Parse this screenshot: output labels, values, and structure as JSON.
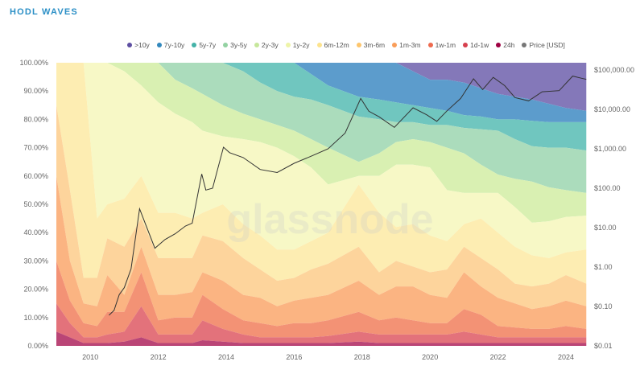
{
  "header": {
    "title": "HODL WAVES"
  },
  "watermark": "glassnode",
  "chart_data": {
    "type": "area",
    "stacked": true,
    "title": "HODL WAVES",
    "x_unit": "year",
    "x": [
      2009.0,
      2009.4,
      2009.8,
      2010.2,
      2010.5,
      2011.0,
      2011.5,
      2012.0,
      2012.5,
      2013.0,
      2013.3,
      2013.9,
      2014.5,
      2015.0,
      2015.5,
      2016.0,
      2016.5,
      2017.0,
      2017.9,
      2018.5,
      2019.0,
      2019.5,
      2020.0,
      2020.5,
      2021.0,
      2021.5,
      2022.0,
      2022.5,
      2023.0,
      2023.5,
      2024.0,
      2024.6
    ],
    "xlim": [
      2009.0,
      2024.64
    ],
    "x_ticks": [
      "2010",
      "2012",
      "2014",
      "2016",
      "2018",
      "2020",
      "2022",
      "2024"
    ],
    "y_ticks": [
      "0.00%",
      "10.00%",
      "20.00%",
      "30.00%",
      "40.00%",
      "50.00%",
      "60.00%",
      "70.00%",
      "80.00%",
      "90.00%",
      "100.00%"
    ],
    "ylim": [
      0,
      100
    ],
    "y2_scale": "log",
    "y2_ticks": [
      "$0.01",
      "$0.10",
      "$1.00",
      "$10.00",
      "$100.00",
      "$1,000.00",
      "$10,000.00",
      "$100,000.00"
    ],
    "y2lim": [
      0.01,
      153000
    ],
    "legend_position": "top",
    "grid": false,
    "band_order_bottom_to_top": [
      "24h",
      "1d-1w",
      "1w-1m",
      "1m-3m",
      "3m-6m",
      "6m-12m",
      "1y-2y",
      "2y-3y",
      "3y-5y",
      "5y-7y",
      "7y-10y",
      ">10y"
    ],
    "shares_percent": [
      [
        5,
        10,
        15,
        30,
        25,
        15,
        0,
        0,
        0,
        0,
        0,
        0
      ],
      [
        3,
        5,
        8,
        14,
        25,
        45,
        0,
        0,
        0,
        0,
        0,
        0
      ],
      [
        1,
        2,
        5,
        7,
        9,
        76,
        0,
        0,
        0,
        0,
        0,
        0
      ],
      [
        1,
        2,
        4,
        7,
        10,
        21,
        55,
        0,
        0,
        0,
        0,
        0
      ],
      [
        1,
        3,
        8,
        13,
        13,
        12,
        50,
        0,
        0,
        0,
        0,
        0
      ],
      [
        1.5,
        3.5,
        7,
        6,
        17,
        17,
        45,
        3,
        0,
        0,
        0,
        0
      ],
      [
        3,
        11,
        12,
        9,
        10,
        15,
        32,
        8,
        0,
        0,
        0,
        0
      ],
      [
        1,
        3,
        5,
        9,
        13,
        16,
        39,
        14,
        0,
        0,
        0,
        0
      ],
      [
        1,
        3,
        6,
        8,
        13,
        16,
        35,
        12,
        6,
        0,
        0,
        0
      ],
      [
        1,
        3,
        6,
        9,
        12,
        14,
        34,
        12,
        9,
        0,
        0,
        0
      ],
      [
        2,
        7,
        9,
        8,
        13,
        8,
        29,
        13,
        11,
        0,
        0,
        0
      ],
      [
        1.5,
        4.5,
        7,
        10,
        14,
        13,
        24,
        11,
        15,
        0,
        0,
        0
      ],
      [
        1,
        3,
        5,
        9,
        13,
        12,
        30,
        9,
        15,
        3,
        0,
        0
      ],
      [
        1,
        2,
        5,
        9,
        10,
        12,
        33,
        8,
        13,
        7,
        0,
        0
      ],
      [
        1,
        2,
        4,
        7,
        9,
        11,
        36,
        8,
        12,
        10,
        0,
        0
      ],
      [
        1,
        2,
        5,
        8,
        8,
        10,
        33,
        9,
        12,
        12,
        0,
        0
      ],
      [
        1,
        2,
        5,
        9,
        10,
        10,
        26,
        10,
        14,
        9,
        4,
        0
      ],
      [
        1,
        2.5,
        5.5,
        9,
        11,
        11,
        17,
        13,
        15,
        7,
        8,
        0
      ],
      [
        1.5,
        3.5,
        7,
        11,
        12,
        22,
        3,
        5,
        16,
        7,
        12,
        0
      ],
      [
        1,
        3,
        5,
        9,
        8,
        21,
        13,
        8,
        12,
        7,
        13,
        0
      ],
      [
        1,
        3,
        6,
        11,
        9,
        12,
        22,
        8,
        7,
        7,
        14,
        0
      ],
      [
        1,
        3,
        5,
        12,
        7,
        15,
        21,
        9,
        6,
        6,
        12,
        3
      ],
      [
        1,
        3,
        4,
        10,
        8,
        13,
        24,
        9,
        6,
        6,
        10,
        6
      ],
      [
        1,
        3,
        4,
        9,
        10,
        10,
        18,
        15,
        8,
        5,
        11,
        6
      ],
      [
        1,
        4,
        8,
        13,
        9,
        8,
        11,
        14,
        9,
        4.5,
        11.5,
        7
      ],
      [
        1,
        3,
        7,
        10,
        10,
        14,
        9,
        10,
        12.5,
        4.5,
        10,
        9
      ],
      [
        1,
        2,
        4,
        10,
        10,
        13,
        14,
        6.5,
        15.5,
        4,
        9,
        11
      ],
      [
        1,
        2,
        3.5,
        8.5,
        7,
        13,
        14,
        10,
        14,
        7,
        8,
        12
      ],
      [
        1,
        2,
        3,
        7,
        8,
        11,
        11.5,
        14.5,
        12.5,
        9,
        7.5,
        13
      ],
      [
        1,
        2,
        3,
        8,
        8,
        9,
        13,
        12,
        14,
        9,
        6.5,
        14.5
      ],
      [
        1,
        2,
        4,
        9,
        9,
        8,
        12.5,
        9.5,
        15,
        9,
        5,
        16
      ],
      [
        1,
        2,
        3,
        8,
        8,
        12,
        12,
        8,
        15,
        10,
        4,
        17
      ]
    ],
    "price": {
      "name": "Price [USD]",
      "x": [
        2010.55,
        2010.7,
        2010.85,
        2011.0,
        2011.2,
        2011.45,
        2011.6,
        2011.9,
        2012.2,
        2012.5,
        2012.8,
        2013.0,
        2013.28,
        2013.4,
        2013.6,
        2013.92,
        2014.1,
        2014.5,
        2015.0,
        2015.5,
        2016.0,
        2016.5,
        2017.0,
        2017.5,
        2017.96,
        2018.2,
        2018.5,
        2018.95,
        2019.5,
        2019.9,
        2020.2,
        2020.5,
        2020.9,
        2021.28,
        2021.55,
        2021.86,
        2022.2,
        2022.5,
        2022.9,
        2023.3,
        2023.8,
        2024.2,
        2024.45,
        2024.6
      ],
      "values": [
        0.06,
        0.08,
        0.2,
        0.3,
        0.9,
        30,
        14,
        3,
        5,
        7,
        11,
        13,
        230,
        90,
        100,
        1100,
        800,
        600,
        300,
        250,
        430,
        650,
        1000,
        2500,
        19000,
        9000,
        6500,
        3500,
        11000,
        7300,
        5000,
        9200,
        19000,
        60000,
        32000,
        65000,
        40000,
        20000,
        16500,
        28000,
        30000,
        70000,
        62000,
        58000
      ],
      "color": "#333333"
    },
    "series": [
      {
        "name": ">10y",
        "color": "#5e4fa2",
        "fill": "#8478b9"
      },
      {
        "name": "7y-10y",
        "color": "#3288bd",
        "fill": "#5c9ccc"
      },
      {
        "name": "5y-7y",
        "color": "#45b3a8",
        "fill": "#70c6bf"
      },
      {
        "name": "3y-5y",
        "color": "#93d2a2",
        "fill": "#abdcbc"
      },
      {
        "name": "2y-3y",
        "color": "#c6e79b",
        "fill": "#d9f0b2"
      },
      {
        "name": "1y-2y",
        "color": "#eef4a8",
        "fill": "#f7f8c6"
      },
      {
        "name": "6m-12m",
        "color": "#fde38d",
        "fill": "#fdedb2"
      },
      {
        "name": "3m-6m",
        "color": "#fdc56c",
        "fill": "#fdd49c"
      },
      {
        "name": "1m-3m",
        "color": "#f99d59",
        "fill": "#fbb482"
      },
      {
        "name": "1w-1m",
        "color": "#ee6a4e",
        "fill": "#f39275"
      },
      {
        "name": "1d-1w",
        "color": "#d6404e",
        "fill": "#e3727b"
      },
      {
        "name": "24h",
        "color": "#9e0142",
        "fill": "#ba4576"
      },
      {
        "name": "Price [USD]",
        "color": "#777777"
      }
    ]
  }
}
